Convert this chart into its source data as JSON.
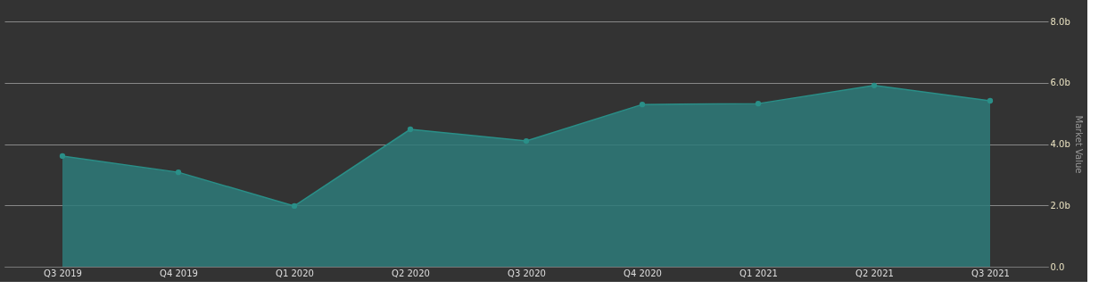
{
  "chart_data": {
    "type": "area",
    "categories": [
      "Q3 2019",
      "Q4 2019",
      "Q1 2020",
      "Q2 2020",
      "Q3 2020",
      "Q4 2020",
      "Q1 2021",
      "Q2 2021",
      "Q3 2021"
    ],
    "values": [
      3.61,
      3.08,
      1.98,
      4.48,
      4.1,
      5.29,
      5.32,
      5.91,
      5.41
    ],
    "color": "#2e7b7a",
    "ylabel": "Market Value",
    "ylim": [
      0,
      8
    ],
    "yticks": [
      {
        "value": 0,
        "label": "0.0"
      },
      {
        "value": 2,
        "label": "2.0b"
      },
      {
        "value": 4,
        "label": "4.0b"
      },
      {
        "value": 6,
        "label": "6.0b"
      },
      {
        "value": 8,
        "label": "8.0b"
      }
    ],
    "grid": "y",
    "marker": "circle"
  }
}
